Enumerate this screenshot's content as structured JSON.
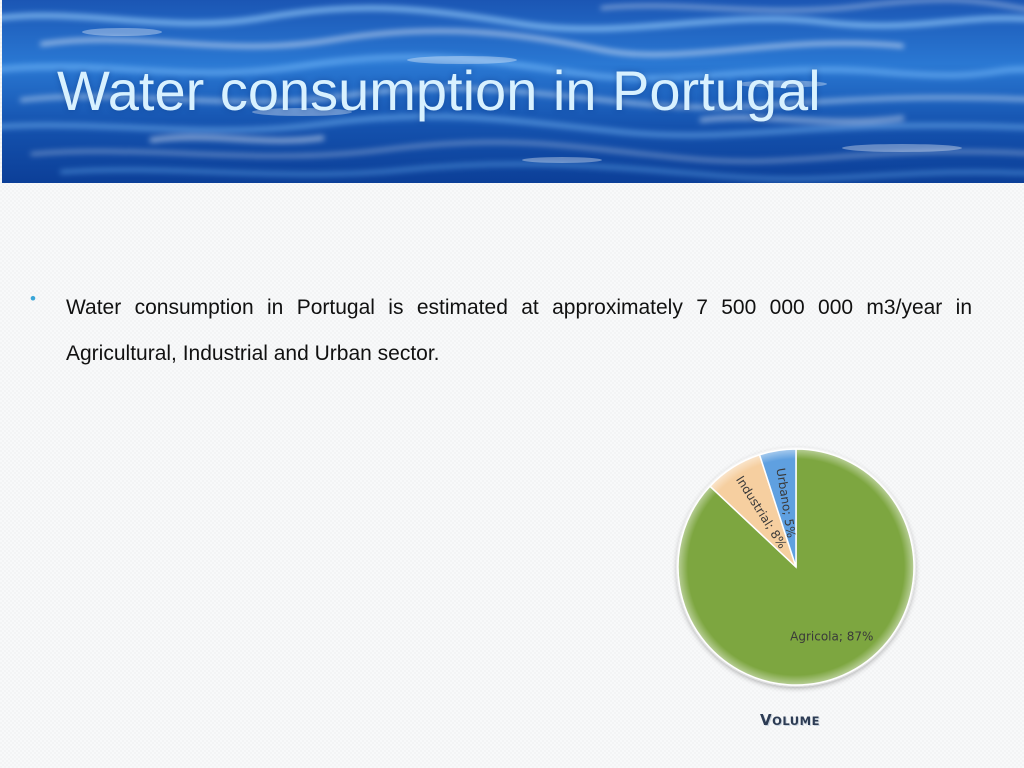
{
  "slide": {
    "title": "Water consumption in Portugal",
    "bullet": "Water consumption in Portugal is estimated at approximately 7 500 000 000 m3/year in Agricultural, Industrial and Urban sector.",
    "caption_first": "V",
    "caption_rest": "OLUME"
  },
  "chart_data": {
    "type": "pie",
    "title": "",
    "caption": "VOLUME",
    "categories": [
      "Agricola",
      "Industrial",
      "Urbano"
    ],
    "values": [
      87,
      8,
      5
    ],
    "unit": "%",
    "labels": [
      "Agricola; 87%",
      "Industrial; 8%",
      "Urbano; 5%"
    ],
    "colors": [
      "#7da63f",
      "#f6cfa0",
      "#5fa0e0"
    ],
    "legend": "none"
  }
}
